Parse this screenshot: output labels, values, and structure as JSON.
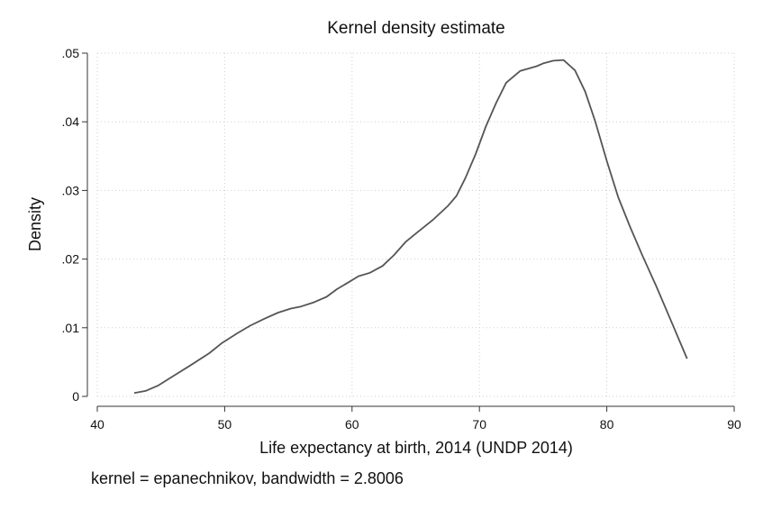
{
  "chart_data": {
    "type": "line",
    "title": "Kernel density estimate",
    "xlabel": "Life expectancy at birth, 2014 (UNDP 2014)",
    "ylabel": "Density",
    "note": "kernel = epanechnikov, bandwidth = 2.8006",
    "xlim": [
      40,
      90
    ],
    "ylim": [
      0,
      0.05
    ],
    "x_ticks": [
      {
        "value": 40,
        "label": "40"
      },
      {
        "value": 50,
        "label": "50"
      },
      {
        "value": 60,
        "label": "60"
      },
      {
        "value": 70,
        "label": "70"
      },
      {
        "value": 80,
        "label": "80"
      },
      {
        "value": 90,
        "label": "90"
      }
    ],
    "y_ticks": [
      {
        "value": 0,
        "label": "0"
      },
      {
        "value": 0.01,
        "label": ".01"
      },
      {
        "value": 0.02,
        "label": ".02"
      },
      {
        "value": 0.03,
        "label": ".03"
      },
      {
        "value": 0.04,
        "label": ".04"
      },
      {
        "value": 0.05,
        "label": ".05"
      }
    ],
    "grid": true,
    "line_color": "#555555",
    "series": [
      {
        "x": [
          42.9,
          43.8,
          44.8,
          46.0,
          47.3,
          48.8,
          49.8,
          51.0,
          52.0,
          53.1,
          54.2,
          55.2,
          56.0,
          57.0,
          58.0,
          58.8,
          59.8,
          60.5,
          61.4,
          62.4,
          63.3,
          64.2,
          65.2,
          66.4,
          67.5,
          68.2,
          68.9,
          69.7,
          70.5,
          71.3,
          72.1,
          73.2,
          74.5,
          75.0,
          75.8,
          76.6,
          77.5,
          78.3,
          79.1,
          80.0,
          80.9,
          81.8,
          82.8,
          83.9,
          85.0,
          86.3
        ],
        "y": [
          0.0005,
          0.0008,
          0.0016,
          0.003,
          0.0045,
          0.0063,
          0.0078,
          0.0092,
          0.0103,
          0.0113,
          0.0122,
          0.0128,
          0.0131,
          0.0137,
          0.0145,
          0.0156,
          0.0167,
          0.0175,
          0.018,
          0.019,
          0.0206,
          0.0225,
          0.024,
          0.0258,
          0.0277,
          0.0292,
          0.0318,
          0.0353,
          0.0393,
          0.0427,
          0.0457,
          0.0474,
          0.0481,
          0.0485,
          0.0489,
          0.049,
          0.0475,
          0.0444,
          0.04,
          0.0343,
          0.029,
          0.0248,
          0.0205,
          0.016,
          0.0112,
          0.0055
        ]
      }
    ]
  }
}
